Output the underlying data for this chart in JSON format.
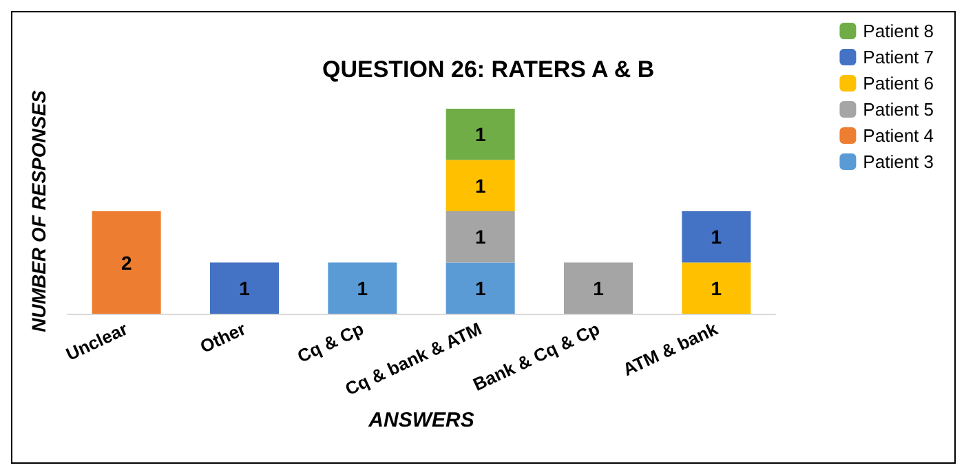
{
  "chart_data": {
    "type": "bar",
    "title": "QUESTION 26: RATERS A & B",
    "xlabel": "ANSWERS",
    "ylabel": "NUMBER OF RESPONSES",
    "categories": [
      "Unclear",
      "Other",
      "Cq & Cp",
      "Cq & bank & ATM",
      "Bank & Cq & Cp",
      "ATM & bank"
    ],
    "stacked": true,
    "data_labels": true,
    "legend": "top right",
    "grid": false,
    "series": [
      {
        "name": "Patient 3",
        "color": "#5b9bd5",
        "values": [
          null,
          null,
          1,
          1,
          null,
          null
        ]
      },
      {
        "name": "Patient 4",
        "color": "#ed7d31",
        "values": [
          2,
          null,
          null,
          null,
          null,
          null
        ]
      },
      {
        "name": "Patient 5",
        "color": "#a5a5a5",
        "values": [
          null,
          null,
          null,
          1,
          1,
          null
        ]
      },
      {
        "name": "Patient 6",
        "color": "#ffc000",
        "values": [
          null,
          null,
          null,
          1,
          null,
          1
        ]
      },
      {
        "name": "Patient 7",
        "color": "#4472c4",
        "values": [
          null,
          1,
          null,
          null,
          null,
          1
        ]
      },
      {
        "name": "Patient 8",
        "color": "#70ad47",
        "values": [
          null,
          null,
          null,
          1,
          null,
          null
        ]
      }
    ]
  }
}
